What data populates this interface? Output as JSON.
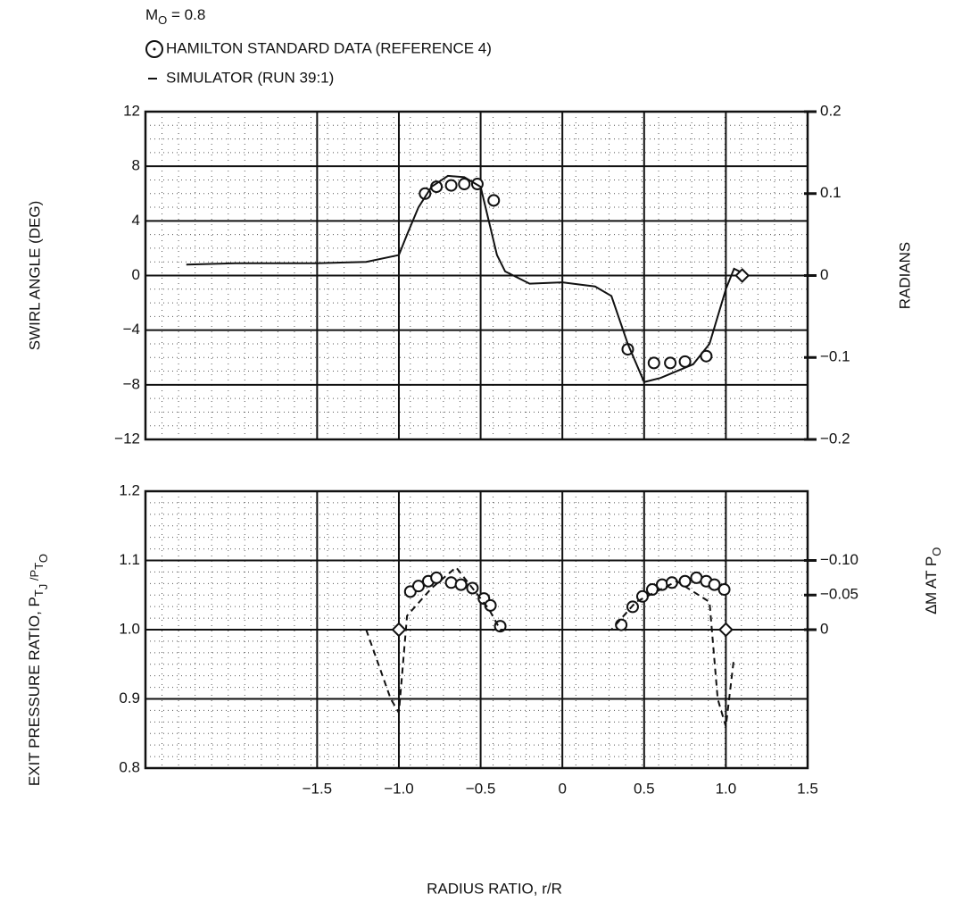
{
  "chart_data": [
    {
      "type": "line",
      "legend_text": {
        "symbol": "M",
        "subscript": "O",
        "text": " = 0.8"
      },
      "ylabel": "SWIRL ANGLE (DEG)",
      "y2label": "RADIANS",
      "xlim": [
        -2.55,
        1.5
      ],
      "xticks": [
        -1.5,
        -1,
        -0.5,
        0,
        0.5,
        1,
        1.5
      ],
      "xtick_labels": false,
      "ylim": [
        -12,
        12
      ],
      "yticks": [
        {
          "value": -12,
          "label": "−12"
        },
        {
          "value": -8,
          "label": "−8"
        },
        {
          "value": -4,
          "label": "−4"
        },
        0,
        4,
        8,
        12
      ],
      "y2lim": [
        -0.2,
        0.2
      ],
      "y2ticks": [
        {
          "value": -0.2,
          "label": "−0.2"
        },
        {
          "value": -0.1,
          "label": "−0.1"
        },
        0,
        0.1,
        0.2
      ],
      "grid": true,
      "series": [
        {
          "name": "HAMILTON STANDARD DATA (REFERENCE 4)",
          "color": "#111111",
          "marker": "circle",
          "x": [
            -0.84,
            -0.77,
            -0.68,
            -0.6,
            -0.52,
            -0.42,
            0.4,
            0.56,
            0.66,
            0.75,
            0.88
          ],
          "values": [
            6,
            6.5,
            6.6,
            6.7,
            6.7,
            5.5,
            -5.4,
            -6.4,
            -6.4,
            -6.3,
            -5.9
          ]
        },
        {
          "name": "SIMULATOR (RUN 39:1)",
          "color": "#111111",
          "line": "solid",
          "x": [
            -2.3,
            -2.0,
            -1.5,
            -1.2,
            -1.0,
            -0.95,
            -0.88,
            -0.8,
            -0.7,
            -0.6,
            -0.5,
            -0.45,
            -0.4,
            -0.35,
            -0.2,
            0,
            0.2,
            0.3,
            0.4,
            0.5,
            0.6,
            0.8,
            0.9,
            1.0,
            1.05,
            1.1
          ],
          "values": [
            0.8,
            0.9,
            0.9,
            1.0,
            1.5,
            3,
            5,
            6.5,
            7.3,
            7.2,
            6.5,
            4,
            1.5,
            0.3,
            -0.6,
            -0.5,
            -0.8,
            -1.5,
            -5,
            -7.8,
            -7.5,
            -6.5,
            -5,
            -1,
            0.5,
            0.2
          ]
        },
        {
          "color": "#111111",
          "marker": "diamond",
          "x": [
            1.1
          ],
          "values": [
            0
          ]
        }
      ]
    },
    {
      "type": "line",
      "ylabel_parts": [
        "EXIT PRESSURE RATIO, P",
        "T",
        "J",
        " /P",
        "T",
        "O"
      ],
      "y2label_parts": [
        "∆M AT P",
        "O"
      ],
      "xlabel": "RADIUS RATIO, r/R",
      "xlim": [
        -2.55,
        1.5
      ],
      "xticks": [
        {
          "value": -1.5,
          "label": "−1.5"
        },
        {
          "value": -1,
          "label": "−1.0"
        },
        {
          "value": -0.5,
          "label": "−0.5"
        },
        0,
        0.5,
        {
          "value": 1,
          "label": "1.0"
        },
        1.5
      ],
      "xtick_labels": true,
      "ylim": [
        0.8,
        1.2
      ],
      "yticks": [
        0.8,
        0.9,
        {
          "value": 1,
          "label": "1.0"
        },
        1.1,
        1.2
      ],
      "y2lim": [
        0.2,
        -0.2
      ],
      "y2ticks": [
        {
          "value": -0.1,
          "label": "−0.10"
        },
        {
          "value": -0.05,
          "label": "−0.05"
        },
        0
      ],
      "grid": true,
      "series": [
        {
          "name": "HAMILTON STANDARD DATA (REFERENCE 4)",
          "color": "#111111",
          "marker": "circle",
          "x": [
            -0.93,
            -0.88,
            -0.82,
            -0.77,
            -0.68,
            -0.62,
            -0.55,
            -0.48,
            -0.44,
            -0.38,
            0.36,
            0.43,
            0.49,
            0.55,
            0.61,
            0.67,
            0.75,
            0.82,
            0.88,
            0.93,
            0.99
          ],
          "values": [
            1.055,
            1.063,
            1.07,
            1.075,
            1.068,
            1.065,
            1.06,
            1.045,
            1.035,
            1.005,
            1.007,
            1.033,
            1.048,
            1.058,
            1.065,
            1.068,
            1.07,
            1.075,
            1.07,
            1.065,
            1.058
          ]
        },
        {
          "name": "SIMULATOR (RUN 39:1)",
          "color": "#111111",
          "line": "dashed",
          "x": [
            -1.2,
            -1.05,
            -1.0,
            -0.95,
            -0.8,
            -0.65,
            -0.55,
            -0.45,
            -0.38,
            -0.3,
            0,
            0.3,
            0.45,
            0.7,
            0.9,
            0.95,
            1.0,
            1.05
          ],
          "values": [
            1.0,
            0.9,
            0.88,
            1.02,
            1.06,
            1.09,
            1.06,
            1.03,
            1.0,
            1.0,
            1.0,
            1.0,
            1.04,
            1.07,
            1.04,
            0.9,
            0.86,
            0.96
          ]
        },
        {
          "color": "#111111",
          "marker": "diamond",
          "x": [
            -1,
            1
          ],
          "values": [
            1,
            1
          ]
        }
      ]
    }
  ]
}
